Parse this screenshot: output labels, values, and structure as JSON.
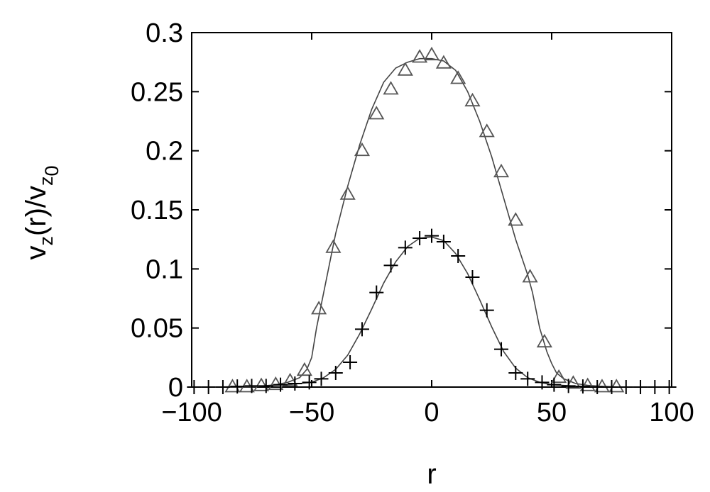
{
  "chart_data": {
    "type": "line",
    "xlabel": "r",
    "ylabel": {
      "v1": "v",
      "sub1": "z",
      "mid": "(r)/v",
      "sub2": "z",
      "subsub2": "0"
    },
    "xlim": [
      -100,
      100
    ],
    "ylim": [
      0,
      0.3
    ],
    "xticks": [
      -100,
      -50,
      0,
      50,
      100
    ],
    "xtick_labels": [
      "−100",
      "−50",
      "0",
      "50",
      "100"
    ],
    "yticks": [
      0,
      0.05,
      0.1,
      0.15,
      0.2,
      0.25,
      0.3
    ],
    "ytick_labels": [
      "0",
      "0.05",
      "0.1",
      "0.15",
      "0.2",
      "0.25",
      "0.3"
    ],
    "grid": false,
    "series": [
      {
        "marker": "triangle",
        "line_x": [
          -100,
          -95,
          -90,
          -85,
          -80,
          -75,
          -70,
          -65,
          -60,
          -55,
          -52,
          -50,
          -48,
          -45,
          -42,
          -40,
          -35,
          -30,
          -25,
          -20,
          -15,
          -10,
          -5,
          0,
          5,
          10,
          15,
          20,
          25,
          30,
          35,
          40,
          42,
          45,
          48,
          50,
          52,
          55,
          60,
          65,
          70,
          75,
          80,
          85,
          90,
          95,
          100
        ],
        "line_y": [
          0,
          0,
          0,
          0,
          0,
          0,
          0.001,
          0.002,
          0.004,
          0.008,
          0.015,
          0.025,
          0.05,
          0.08,
          0.11,
          0.13,
          0.17,
          0.205,
          0.235,
          0.258,
          0.27,
          0.275,
          0.278,
          0.278,
          0.276,
          0.268,
          0.25,
          0.225,
          0.195,
          0.16,
          0.125,
          0.095,
          0.08,
          0.05,
          0.03,
          0.02,
          0.012,
          0.007,
          0.003,
          0.0015,
          0.0008,
          0.0003,
          0,
          0,
          0,
          0,
          0
        ],
        "points_x": [
          -83,
          -77,
          -71,
          -65,
          -59,
          -53,
          -47,
          -41,
          -35,
          -29,
          -23,
          -17,
          -11,
          -5,
          0,
          5,
          11,
          17,
          23,
          29,
          35,
          41,
          47,
          53,
          59,
          65,
          71,
          77
        ],
        "points_y": [
          0.0,
          0.0,
          0.001,
          0.002,
          0.005,
          0.014,
          0.066,
          0.118,
          0.163,
          0.2,
          0.231,
          0.252,
          0.268,
          0.279,
          0.281,
          0.274,
          0.261,
          0.242,
          0.216,
          0.182,
          0.141,
          0.093,
          0.038,
          0.008,
          0.003,
          0.001,
          0.0,
          0.0
        ]
      },
      {
        "marker": "plus",
        "line_x": [
          -100,
          -90,
          -80,
          -70,
          -60,
          -50,
          -45,
          -40,
          -35,
          -30,
          -25,
          -20,
          -15,
          -10,
          -5,
          0,
          5,
          10,
          15,
          20,
          25,
          30,
          35,
          40,
          45,
          50,
          60,
          70,
          80,
          90,
          100
        ],
        "line_y": [
          0,
          0,
          0.0005,
          0.001,
          0.002,
          0.004,
          0.008,
          0.015,
          0.027,
          0.045,
          0.066,
          0.088,
          0.106,
          0.119,
          0.126,
          0.127,
          0.124,
          0.113,
          0.096,
          0.074,
          0.051,
          0.03,
          0.016,
          0.008,
          0.004,
          0.002,
          0.0008,
          0.0003,
          0,
          0,
          0
        ],
        "points_x": [
          -99,
          -93,
          -87,
          -81,
          -75,
          -69,
          -63,
          -57,
          -51,
          -46,
          -40,
          -34,
          -29,
          -23,
          -17,
          -11,
          -5,
          0,
          5,
          11,
          17,
          23,
          29,
          35,
          40,
          46,
          51,
          57,
          63,
          69,
          75,
          81,
          87,
          93,
          99
        ],
        "points_y": [
          0,
          0,
          0,
          0.0005,
          0.001,
          0.001,
          0.002,
          0.003,
          0.004,
          0.007,
          0.012,
          0.021,
          0.049,
          0.08,
          0.103,
          0.118,
          0.126,
          0.128,
          0.123,
          0.111,
          0.093,
          0.065,
          0.032,
          0.012,
          0.007,
          0.004,
          0.002,
          0.001,
          0.0005,
          0,
          0,
          0,
          0,
          0,
          0
        ]
      }
    ]
  }
}
